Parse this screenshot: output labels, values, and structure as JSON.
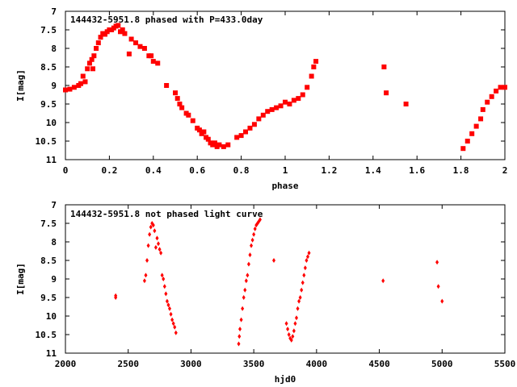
{
  "chart_data": [
    {
      "type": "scatter",
      "title": "144432-5951.8 phased with P=433.0day",
      "xlabel": "phase",
      "ylabel": "I[mag]",
      "xlim": [
        0,
        2
      ],
      "ylim": [
        11,
        7
      ],
      "y_inverted": true,
      "grid": false,
      "legend": "none",
      "color": "#ff0000",
      "xticks": [
        "0",
        "0.2",
        "0.4",
        "0.6",
        "0.8",
        "1",
        "1.2",
        "1.4",
        "1.6",
        "1.8",
        "2"
      ],
      "xtick_values": [
        0,
        0.2,
        0.4,
        0.6,
        0.8,
        1,
        1.2,
        1.4,
        1.6,
        1.8,
        2
      ],
      "yticks": [
        "7",
        "7.5",
        "8",
        "8.5",
        "9",
        "9.5",
        "10",
        "10.5",
        "11"
      ],
      "ytick_values": [
        7,
        7.5,
        8,
        8.5,
        9,
        9.5,
        10,
        10.5,
        11
      ],
      "series": [
        {
          "x": [
            0.0,
            0.02,
            0.04,
            0.06,
            0.07,
            0.08,
            0.09,
            0.1,
            0.11,
            0.12,
            0.125,
            0.13,
            0.14,
            0.15,
            0.16,
            0.17,
            0.18,
            0.19,
            0.2,
            0.21,
            0.22,
            0.23,
            0.24,
            0.25,
            0.26,
            0.27,
            0.29,
            0.3,
            0.32,
            0.34,
            0.36,
            0.38,
            0.39,
            0.4,
            0.42,
            0.46,
            0.5,
            0.51,
            0.52,
            0.53,
            0.55,
            0.56,
            0.58,
            0.6,
            0.61,
            0.62,
            0.63,
            0.64,
            0.65,
            0.66,
            0.67,
            0.68,
            0.69,
            0.7,
            0.72,
            0.74,
            0.78,
            0.8,
            0.82,
            0.84,
            0.86,
            0.88,
            0.9,
            0.92,
            0.94,
            0.96,
            0.98,
            1.0,
            1.02,
            1.04,
            1.06,
            1.08,
            1.1,
            1.12,
            1.13,
            1.14,
            1.45,
            1.46,
            1.55,
            1.81,
            1.83,
            1.85,
            1.87,
            1.89,
            1.9,
            1.92,
            1.94,
            1.96,
            1.98,
            2.0
          ],
          "y": [
            9.12,
            9.1,
            9.05,
            9.0,
            8.95,
            8.75,
            8.9,
            8.55,
            8.4,
            8.3,
            8.55,
            8.2,
            8.0,
            7.85,
            7.7,
            7.6,
            7.62,
            7.55,
            7.5,
            7.5,
            7.45,
            7.4,
            7.38,
            7.55,
            7.5,
            7.6,
            8.15,
            7.75,
            7.85,
            7.95,
            8.0,
            8.2,
            8.2,
            8.35,
            8.4,
            9.0,
            9.2,
            9.35,
            9.5,
            9.6,
            9.75,
            9.8,
            9.95,
            10.15,
            10.2,
            10.3,
            10.25,
            10.4,
            10.45,
            10.55,
            10.6,
            10.55,
            10.65,
            10.6,
            10.65,
            10.6,
            10.4,
            10.35,
            10.25,
            10.15,
            10.05,
            9.9,
            9.8,
            9.7,
            9.65,
            9.6,
            9.55,
            9.45,
            9.5,
            9.4,
            9.35,
            9.25,
            9.05,
            8.75,
            8.5,
            8.35,
            8.5,
            9.2,
            9.5,
            10.7,
            10.5,
            10.3,
            10.1,
            9.9,
            9.65,
            9.45,
            9.3,
            9.15,
            9.05,
            9.05
          ]
        }
      ]
    },
    {
      "type": "scatter",
      "title": "144432-5951.8 not phased light curve",
      "xlabel": "hjd0",
      "ylabel": "I[mag]",
      "xlim": [
        2000,
        5500
      ],
      "ylim": [
        11,
        7
      ],
      "y_inverted": true,
      "grid": false,
      "legend": "none",
      "color": "#ff0000",
      "xticks": [
        "2000",
        "2500",
        "3000",
        "3500",
        "4000",
        "4500",
        "5000",
        "5500"
      ],
      "xtick_values": [
        2000,
        2500,
        3000,
        3500,
        4000,
        4500,
        5000,
        5500
      ],
      "yticks": [
        "7",
        "7.5",
        "8",
        "8.5",
        "9",
        "9.5",
        "10",
        "10.5",
        "11"
      ],
      "ytick_values": [
        7,
        7.5,
        8,
        8.5,
        9,
        9.5,
        10,
        10.5,
        11
      ],
      "series": [
        {
          "x": [
            2400,
            2400,
            2630,
            2640,
            2650,
            2660,
            2670,
            2680,
            2690,
            2700,
            2710,
            2720,
            2730,
            2740,
            2750,
            2760,
            2770,
            2780,
            2790,
            2800,
            2810,
            2820,
            2830,
            2840,
            2850,
            2860,
            2870,
            2880,
            3380,
            3385,
            3390,
            3400,
            3410,
            3420,
            3430,
            3440,
            3450,
            3460,
            3470,
            3480,
            3490,
            3500,
            3510,
            3520,
            3530,
            3540,
            3550,
            3660,
            3760,
            3770,
            3780,
            3790,
            3800,
            3810,
            3820,
            3830,
            3840,
            3850,
            3860,
            3870,
            3880,
            3890,
            3900,
            3910,
            3920,
            3930,
            3940,
            4530,
            4960,
            4970,
            5000
          ],
          "y": [
            9.45,
            9.5,
            9.05,
            8.9,
            8.5,
            8.1,
            7.8,
            7.6,
            7.5,
            7.55,
            7.7,
            8.15,
            7.9,
            8.05,
            8.2,
            8.3,
            8.9,
            9.0,
            9.2,
            9.4,
            9.6,
            9.7,
            9.8,
            9.95,
            10.1,
            10.2,
            10.3,
            10.45,
            10.75,
            10.55,
            10.35,
            10.1,
            9.8,
            9.5,
            9.3,
            9.05,
            8.9,
            8.6,
            8.35,
            8.1,
            7.95,
            7.8,
            7.65,
            7.55,
            7.5,
            7.45,
            7.4,
            8.5,
            10.2,
            10.35,
            10.5,
            10.6,
            10.65,
            10.55,
            10.4,
            10.2,
            10.05,
            9.8,
            9.6,
            9.5,
            9.3,
            9.1,
            8.9,
            8.7,
            8.5,
            8.4,
            8.3,
            9.05,
            8.55,
            9.2,
            9.6
          ]
        }
      ]
    }
  ]
}
